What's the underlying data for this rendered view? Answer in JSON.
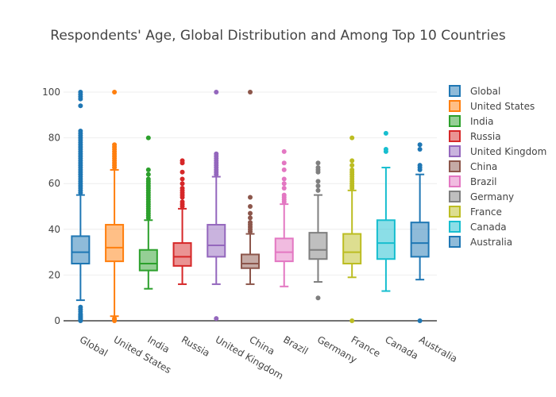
{
  "chart_data": {
    "type": "box",
    "title": "Respondents' Age, Global Distribution and Among Top 10 Countries",
    "xlabel": "",
    "ylabel": "",
    "ylim": [
      -1,
      104
    ],
    "yticks": [
      0,
      20,
      40,
      60,
      80,
      100
    ],
    "grid": true,
    "legend_position": "right",
    "series": [
      {
        "name": "Global",
        "color": "#1f77b4",
        "min": 9,
        "q1": 25,
        "median": 30,
        "q3": 37,
        "max": 55,
        "outliers": [
          0,
          0.5,
          1,
          1.5,
          2,
          2.5,
          3,
          4,
          5,
          6,
          56,
          57,
          58,
          59,
          60,
          61,
          62,
          63,
          64,
          65,
          66,
          67,
          68,
          69,
          70,
          71,
          72,
          73,
          74,
          75,
          76,
          77,
          78,
          79,
          80,
          81,
          82,
          83,
          94,
          97,
          98,
          99,
          100
        ]
      },
      {
        "name": "United States",
        "color": "#ff7f0e",
        "min": 2,
        "q1": 26,
        "median": 32,
        "q3": 42,
        "max": 66,
        "outliers": [
          0,
          0.5,
          1,
          67,
          68,
          69,
          70,
          71,
          72,
          73,
          74,
          75,
          76,
          77,
          100
        ]
      },
      {
        "name": "India",
        "color": "#2ca02c",
        "min": 14,
        "q1": 22,
        "median": 25,
        "q3": 31,
        "max": 44,
        "outliers": [
          45,
          46,
          47,
          48,
          49,
          50,
          51,
          52,
          53,
          54,
          55,
          56,
          57,
          58,
          59,
          60,
          61,
          62,
          64,
          66,
          80
        ]
      },
      {
        "name": "Russia",
        "color": "#d62728",
        "min": 16,
        "q1": 24,
        "median": 28,
        "q3": 34,
        "max": 49,
        "outliers": [
          50,
          51,
          52,
          54,
          55,
          56,
          57,
          58,
          60,
          62,
          65,
          69,
          70
        ]
      },
      {
        "name": "United Kingdom",
        "color": "#9467bd",
        "min": 16,
        "q1": 28,
        "median": 33,
        "q3": 42,
        "max": 63,
        "outliers": [
          1,
          64,
          65,
          66,
          67,
          68,
          69,
          70,
          71,
          72,
          73,
          100
        ]
      },
      {
        "name": "China",
        "color": "#8c564b",
        "min": 16,
        "q1": 23,
        "median": 25,
        "q3": 29,
        "max": 38,
        "outliers": [
          39,
          40,
          41,
          42,
          43,
          45,
          47,
          50,
          54,
          100
        ]
      },
      {
        "name": "Brazil",
        "color": "#e377c2",
        "min": 15,
        "q1": 26,
        "median": 30,
        "q3": 36,
        "max": 51,
        "outliers": [
          52,
          53,
          54,
          55,
          58,
          60,
          62,
          66,
          69,
          74
        ]
      },
      {
        "name": "Germany",
        "color": "#7f7f7f",
        "min": 17,
        "q1": 27,
        "median": 31,
        "q3": 38.5,
        "max": 55,
        "outliers": [
          10,
          57,
          59,
          61,
          65,
          66,
          67,
          69
        ]
      },
      {
        "name": "France",
        "color": "#bcbd22",
        "min": 19,
        "q1": 25,
        "median": 30,
        "q3": 38,
        "max": 57,
        "outliers": [
          0,
          58,
          59,
          60,
          61,
          62,
          63,
          64,
          65,
          66,
          68,
          70,
          80
        ]
      },
      {
        "name": "Canada",
        "color": "#17becf",
        "min": 13,
        "q1": 27,
        "median": 34,
        "q3": 44,
        "max": 67,
        "outliers": [
          74,
          75,
          82
        ]
      },
      {
        "name": "Australia",
        "color": "#1f77b4",
        "min": 18,
        "q1": 28,
        "median": 34,
        "q3": 43,
        "max": 64,
        "outliers": [
          0,
          66,
          67,
          68,
          75,
          77
        ]
      }
    ]
  }
}
